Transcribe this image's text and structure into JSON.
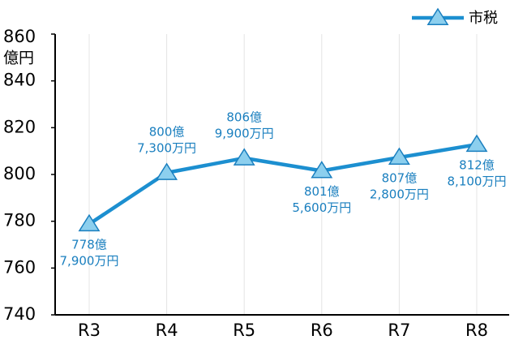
{
  "chart_data": {
    "type": "line",
    "y_label": "億円",
    "categories": [
      "R3",
      "R4",
      "R5",
      "R6",
      "R7",
      "R8"
    ],
    "series": [
      {
        "name": "市税",
        "color": "#1c8fd0",
        "marker_fill": "#8ccfee",
        "values": [
          778.79,
          800.73,
          806.99,
          801.56,
          807.28,
          812.81
        ],
        "value_labels": [
          [
            "778億",
            "7,900万円"
          ],
          [
            "800億",
            "7,300万円"
          ],
          [
            "806億",
            "9,900万円"
          ],
          [
            "801億",
            "5,600万円"
          ],
          [
            "807億",
            "2,800万円"
          ],
          [
            "812億",
            "8,100万円"
          ]
        ]
      }
    ],
    "ylim": [
      740,
      860
    ],
    "yticks": [
      740,
      760,
      780,
      800,
      820,
      840,
      860
    ],
    "grid": "x",
    "legend": "top-right"
  }
}
